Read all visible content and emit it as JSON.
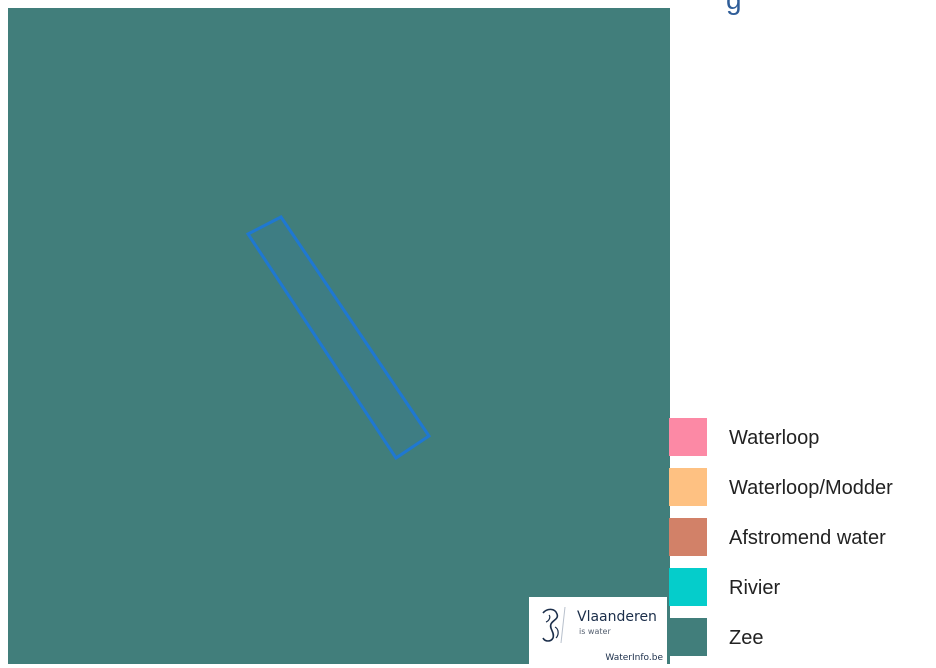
{
  "title_fragment": "g",
  "map": {
    "background_color": "#417e7b",
    "feature_outline_color": "#1f78d1"
  },
  "logo": {
    "name": "Vlaanderen",
    "tagline": "is water",
    "site": "WaterInfo.be"
  },
  "legend": {
    "items": [
      {
        "label": "Waterloop",
        "color": "#fc89a5"
      },
      {
        "label": "Waterloop/Modder",
        "color": "#fec182"
      },
      {
        "label": "Afstromend water",
        "color": "#d28168"
      },
      {
        "label": "Rivier",
        "color": "#05cdcb"
      },
      {
        "label": "Zee",
        "color": "#417e7b"
      }
    ]
  }
}
